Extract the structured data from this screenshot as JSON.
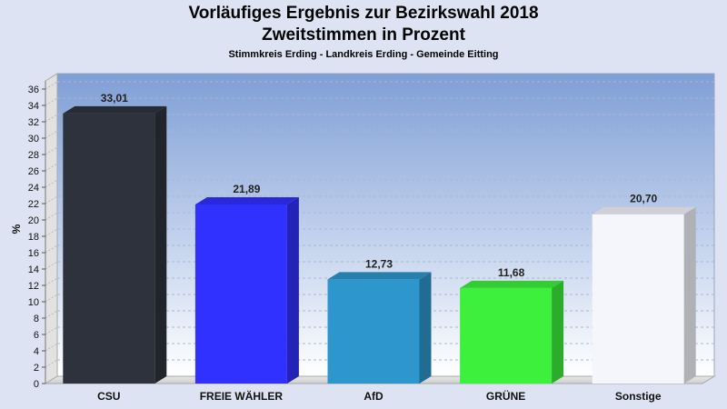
{
  "chart_data": {
    "type": "bar",
    "title": "Vorläufiges Ergebnis zur Bezirkswahl 2018",
    "subtitle": "Zweitstimmen in Prozent",
    "caption": "Stimmkreis Erding - Landkreis Erding - Gemeinde Eitting",
    "ylabel": "%",
    "xlabel": "",
    "categories": [
      "CSU",
      "FREIE WÄHLER",
      "AfD",
      "GRÜNE",
      "Sonstige"
    ],
    "values": [
      33.01,
      21.89,
      12.73,
      11.68,
      20.7
    ],
    "value_labels": [
      "33,01",
      "21,89",
      "12,73",
      "11,68",
      "20,70"
    ],
    "colors": [
      "#2e323c",
      "#3030ff",
      "#2d96cc",
      "#3cf03c",
      "#f4f6fc"
    ],
    "ylim": [
      0,
      37
    ],
    "yticks": [
      0,
      2,
      4,
      6,
      8,
      10,
      12,
      14,
      16,
      18,
      20,
      22,
      24,
      26,
      28,
      30,
      32,
      34,
      36
    ],
    "grid": true,
    "legend": "none"
  }
}
